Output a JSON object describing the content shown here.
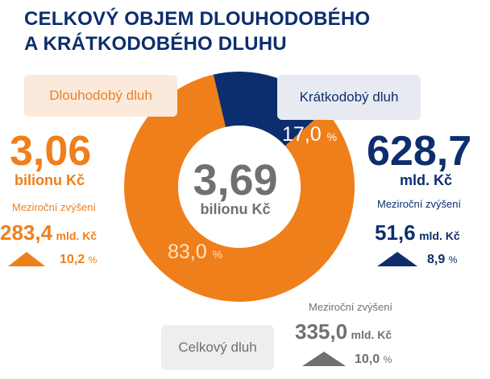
{
  "title_line1": "CELKOVÝ OBJEM DLOUHODOBÉHO",
  "title_line2": "A KRÁTKODOBÉHO DLUHU",
  "colors": {
    "long": "#ef7f1a",
    "short": "#0d2e6e",
    "total": "#707070"
  },
  "chart_data": {
    "type": "pie",
    "categories": [
      "Dlouhodobý dluh",
      "Krátkodobý dluh"
    ],
    "values": [
      83.0,
      17.0
    ],
    "value_labels": [
      "83,0",
      "17,0"
    ],
    "percent_symbol": "%",
    "center_value": "3,69",
    "center_unit": "bilionu Kč"
  },
  "long_term": {
    "label": "Dlouhodobý dluh",
    "value": "3,06",
    "unit": "bilionu Kč",
    "yoy_label": "Meziroční zvýšení",
    "increase": "283,4",
    "increase_unit": "mld. Kč",
    "increase_pct": "10,2",
    "pct_symbol": "%",
    "arrow_icon": "triangle-up-icon"
  },
  "short_term": {
    "label": "Krátkodobý dluh",
    "value": "628,7",
    "unit": "mld. Kč",
    "yoy_label": "Meziroční zvýšení",
    "increase": "51,6",
    "increase_unit": "mld. Kč",
    "increase_pct": "8,9",
    "pct_symbol": "%",
    "arrow_icon": "triangle-up-icon"
  },
  "total": {
    "label": "Celkový dluh",
    "yoy_label": "Meziroční zvýšení",
    "increase": "335,0",
    "increase_unit": "mld. Kč",
    "increase_pct": "10,0",
    "pct_symbol": "%",
    "arrow_icon": "triangle-up-icon"
  }
}
